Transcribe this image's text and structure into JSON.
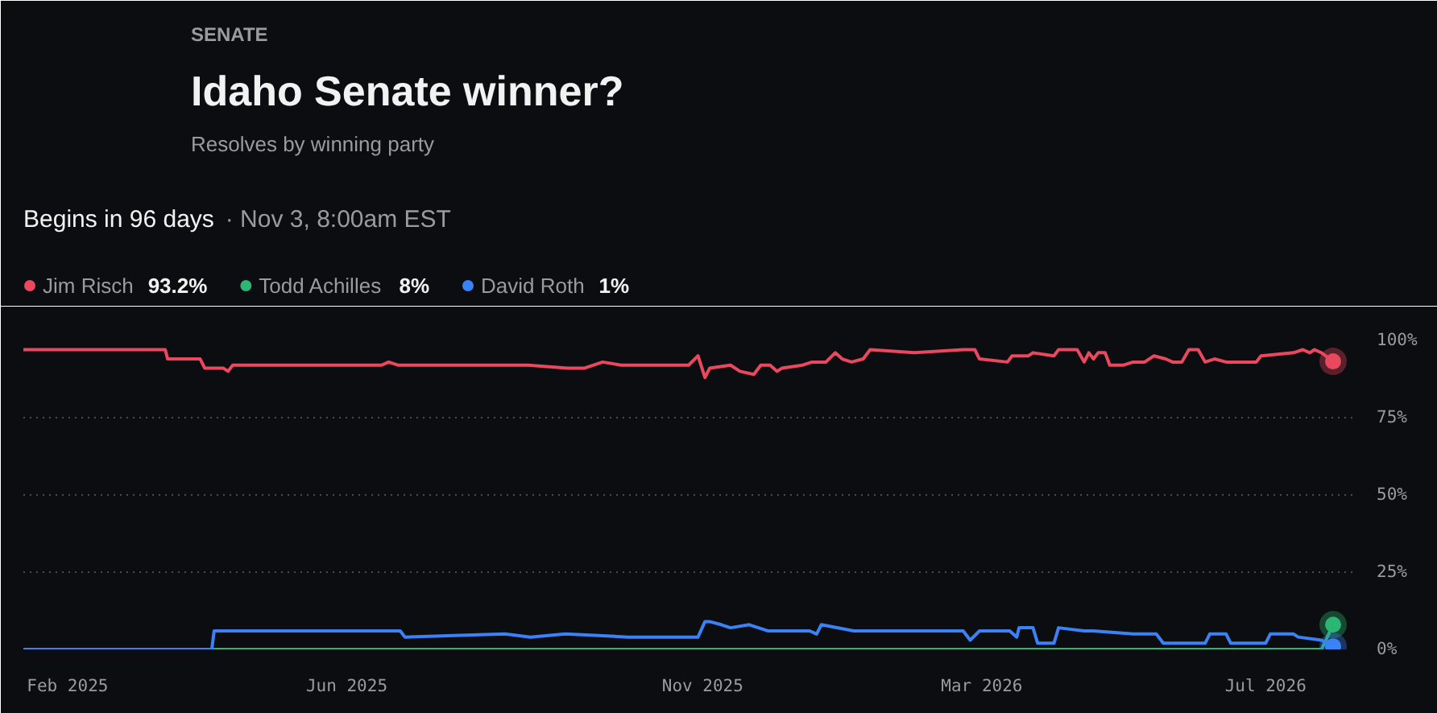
{
  "chart_data": {
    "type": "line",
    "title": "Idaho Senate winner?",
    "subtitle": "Resolves by winning party",
    "annotations": [
      "SENATE",
      "Begins in 96 days",
      "· Nov 3, 8:00am EST",
      "93.2%",
      "8%",
      "1%"
    ],
    "series": [
      {
        "name": "Jim Risch",
        "color": "#e9485f",
        "x": [
          "2025-01-13",
          "2025-03-15",
          "2025-03-16",
          "2025-03-30",
          "2025-04-01",
          "2025-04-09",
          "2025-04-11",
          "2025-04-13",
          "2025-06-16",
          "2025-06-19",
          "2025-06-23",
          "2025-08-18",
          "2025-09-04",
          "2025-09-11",
          "2025-09-19",
          "2025-09-27",
          "2025-10-26",
          "2025-10-30",
          "2025-11-02",
          "2025-11-04",
          "2025-11-13",
          "2025-11-17",
          "2025-11-23",
          "2025-11-26",
          "2025-11-30",
          "2025-12-03",
          "2025-12-05",
          "2025-12-14",
          "2025-12-18",
          "2025-12-24",
          "2025-12-28",
          "2025-12-31",
          "2026-01-04",
          "2026-01-09",
          "2026-01-12",
          "2026-01-31",
          "2026-02-21",
          "2026-02-26",
          "2026-02-28",
          "2026-03-12",
          "2026-03-14",
          "2026-03-21",
          "2026-03-23",
          "2026-04-01",
          "2026-04-03",
          "2026-04-11",
          "2026-04-14",
          "2026-04-16",
          "2026-04-18",
          "2026-04-20",
          "2026-04-23",
          "2026-04-25",
          "2026-05-01",
          "2026-05-05",
          "2026-05-10",
          "2026-05-14",
          "2026-05-19",
          "2026-05-22",
          "2026-05-26",
          "2026-05-29",
          "2026-06-02",
          "2026-06-05",
          "2026-06-09",
          "2026-06-14",
          "2026-06-27",
          "2026-06-29",
          "2026-07-13",
          "2026-07-17",
          "2026-07-20",
          "2026-07-22",
          "2026-07-25",
          "2026-07-30"
        ],
        "values": [
          97,
          97,
          94,
          94,
          91,
          91,
          90,
          92,
          92,
          93,
          92,
          92,
          91,
          91,
          93,
          92,
          92,
          95,
          88,
          91,
          92,
          90,
          89,
          92,
          92,
          90,
          91,
          92,
          93,
          93,
          96,
          94,
          93,
          94,
          97,
          96,
          97,
          97,
          94,
          93,
          95,
          95,
          96,
          95,
          97,
          97,
          93,
          96,
          94,
          96,
          96,
          92,
          92,
          93,
          93,
          95,
          94,
          93,
          93,
          97,
          97,
          93,
          94,
          93,
          93,
          95,
          96,
          97,
          96,
          97,
          96,
          93.2
        ]
      },
      {
        "name": "Todd Achilles",
        "color": "#2bb673",
        "x": [
          "2025-04-04",
          "2026-07-25",
          "2026-07-30"
        ],
        "values": [
          0,
          0,
          8
        ]
      },
      {
        "name": "David Roth",
        "color": "#3b82f6",
        "x": [
          "2025-01-13",
          "2025-04-04",
          "2025-04-05",
          "2025-06-24",
          "2025-06-26",
          "2025-08-08",
          "2025-08-19",
          "2025-09-03",
          "2025-09-30",
          "2025-10-30",
          "2025-11-02",
          "2025-11-04",
          "2025-11-09",
          "2025-11-13",
          "2025-11-21",
          "2025-11-29",
          "2025-12-17",
          "2025-12-20",
          "2025-12-22",
          "2026-01-05",
          "2026-02-21",
          "2026-02-24",
          "2026-02-28",
          "2026-03-13",
          "2026-03-16",
          "2026-03-17",
          "2026-03-23",
          "2026-03-25",
          "2026-04-01",
          "2026-04-03",
          "2026-04-14",
          "2026-04-18",
          "2026-05-05",
          "2026-05-15",
          "2026-05-18",
          "2026-06-05",
          "2026-06-07",
          "2026-06-14",
          "2026-06-16",
          "2026-07-01",
          "2026-07-03",
          "2026-07-13",
          "2026-07-15",
          "2026-07-25",
          "2026-07-30"
        ],
        "values": [
          0,
          0,
          6,
          6,
          4,
          5,
          4,
          5,
          4,
          4,
          9,
          9,
          8,
          7,
          8,
          6,
          6,
          5,
          8,
          6,
          6,
          3,
          6,
          6,
          4,
          7,
          7,
          2,
          2,
          7,
          6,
          6,
          5,
          5,
          2,
          2,
          5,
          5,
          2,
          2,
          5,
          5,
          4,
          3,
          1
        ]
      }
    ],
    "xlim": [
      "2025-01-13",
      "2026-08-08"
    ],
    "xticks": [
      {
        "value": "2025-02-01",
        "label": "Feb 2025"
      },
      {
        "value": "2025-06-01",
        "label": "Jun 2025"
      },
      {
        "value": "2025-11-01",
        "label": "Nov 2025"
      },
      {
        "value": "2026-03-01",
        "label": "Mar 2026"
      },
      {
        "value": "2026-07-01",
        "label": "Jul 2026"
      }
    ],
    "ylim": [
      0,
      100
    ],
    "yticks": [
      {
        "value": 0,
        "label": "0%"
      },
      {
        "value": 25,
        "label": "25%"
      },
      {
        "value": 50,
        "label": "50%"
      },
      {
        "value": 75,
        "label": "75%"
      },
      {
        "value": 100,
        "label": "100%"
      }
    ],
    "grid": "y",
    "legend": "top left",
    "line_style": "solid"
  }
}
